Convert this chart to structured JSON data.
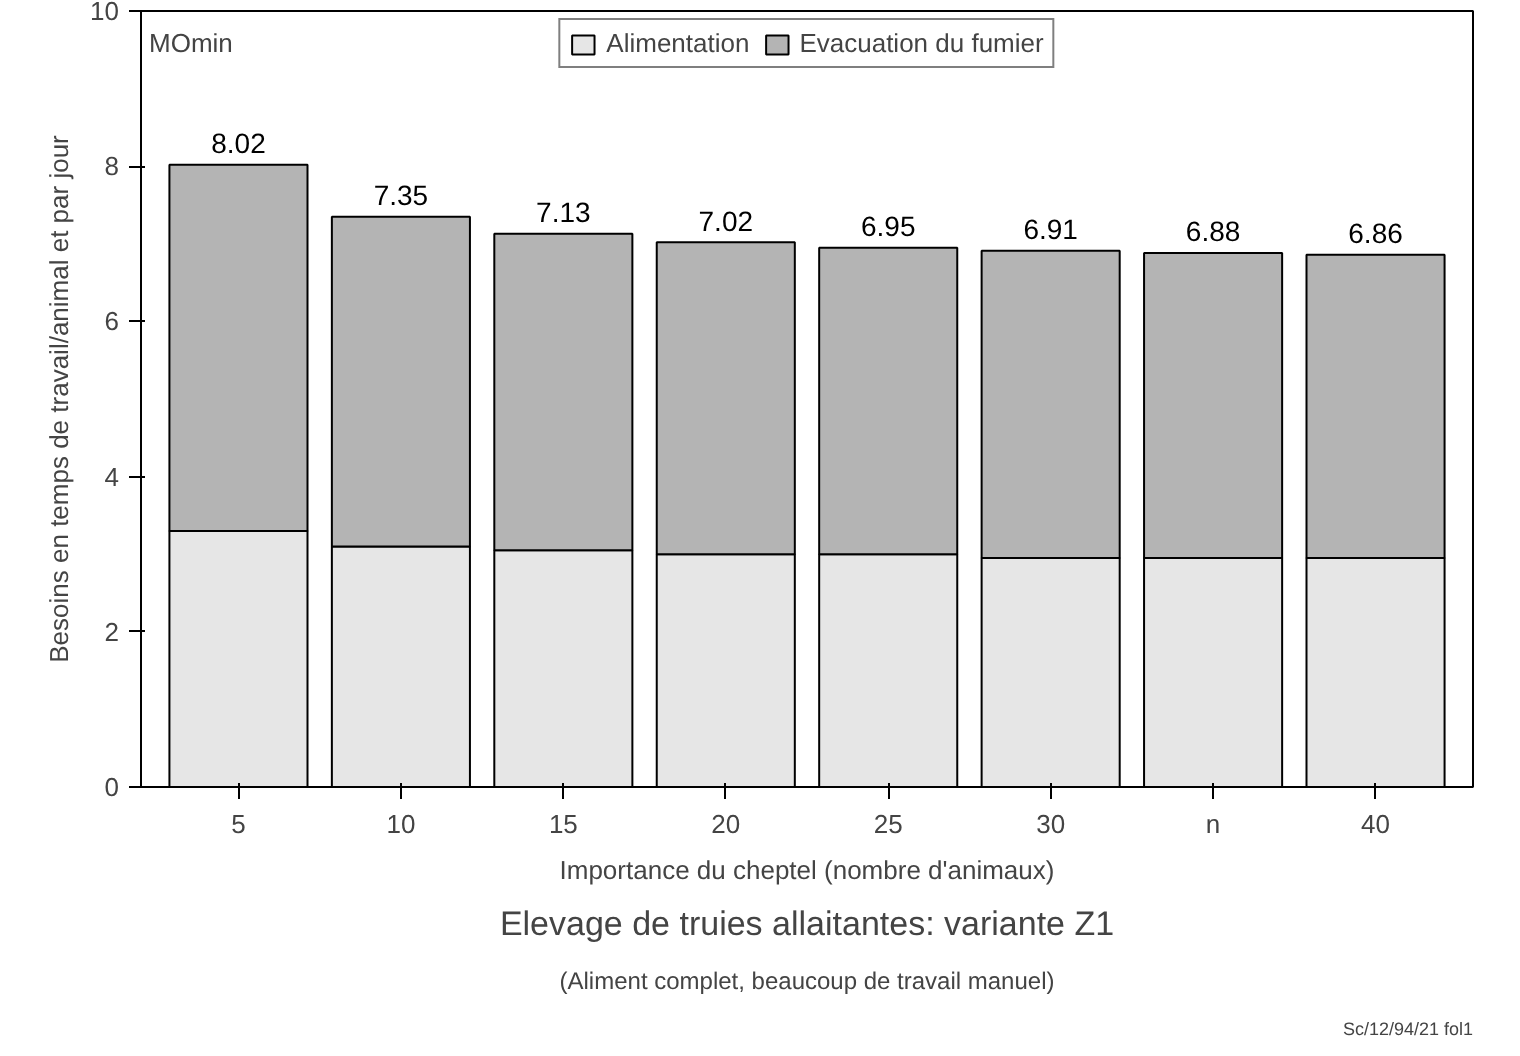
{
  "chart_data": {
    "type": "bar",
    "stacked": true,
    "title": "Elevage de truies allaitantes: variante Z1",
    "subtitle": "(Aliment complet, beaucoup de travail manuel)",
    "xlabel": "Importance du cheptel (nombre d'animaux)",
    "ylabel": "Besoins en temps de travail/animal et par jour",
    "categories": [
      "5",
      "10",
      "15",
      "20",
      "25",
      "30",
      "n",
      "40"
    ],
    "series": [
      {
        "name": "Alimentation",
        "color": "#e6e6e6",
        "values": [
          3.3,
          3.1,
          3.05,
          3.0,
          3.0,
          2.95,
          2.95,
          2.95
        ]
      },
      {
        "name": "Evacuation du fumier",
        "color": "#b4b4b4",
        "values": [
          4.72,
          4.25,
          4.08,
          4.02,
          3.95,
          3.96,
          3.93,
          3.91
        ]
      }
    ],
    "totals": [
      "8.02",
      "7.35",
      "7.13",
      "7.02",
      "6.95",
      "6.91",
      "6.88",
      "6.86"
    ],
    "ylim": [
      0,
      10
    ],
    "yticks": [
      0,
      2,
      4,
      6,
      8,
      10
    ],
    "grid": false,
    "legend": "top",
    "annotations": [
      "MOmin",
      "Sc/12/94/21 fol1"
    ]
  }
}
